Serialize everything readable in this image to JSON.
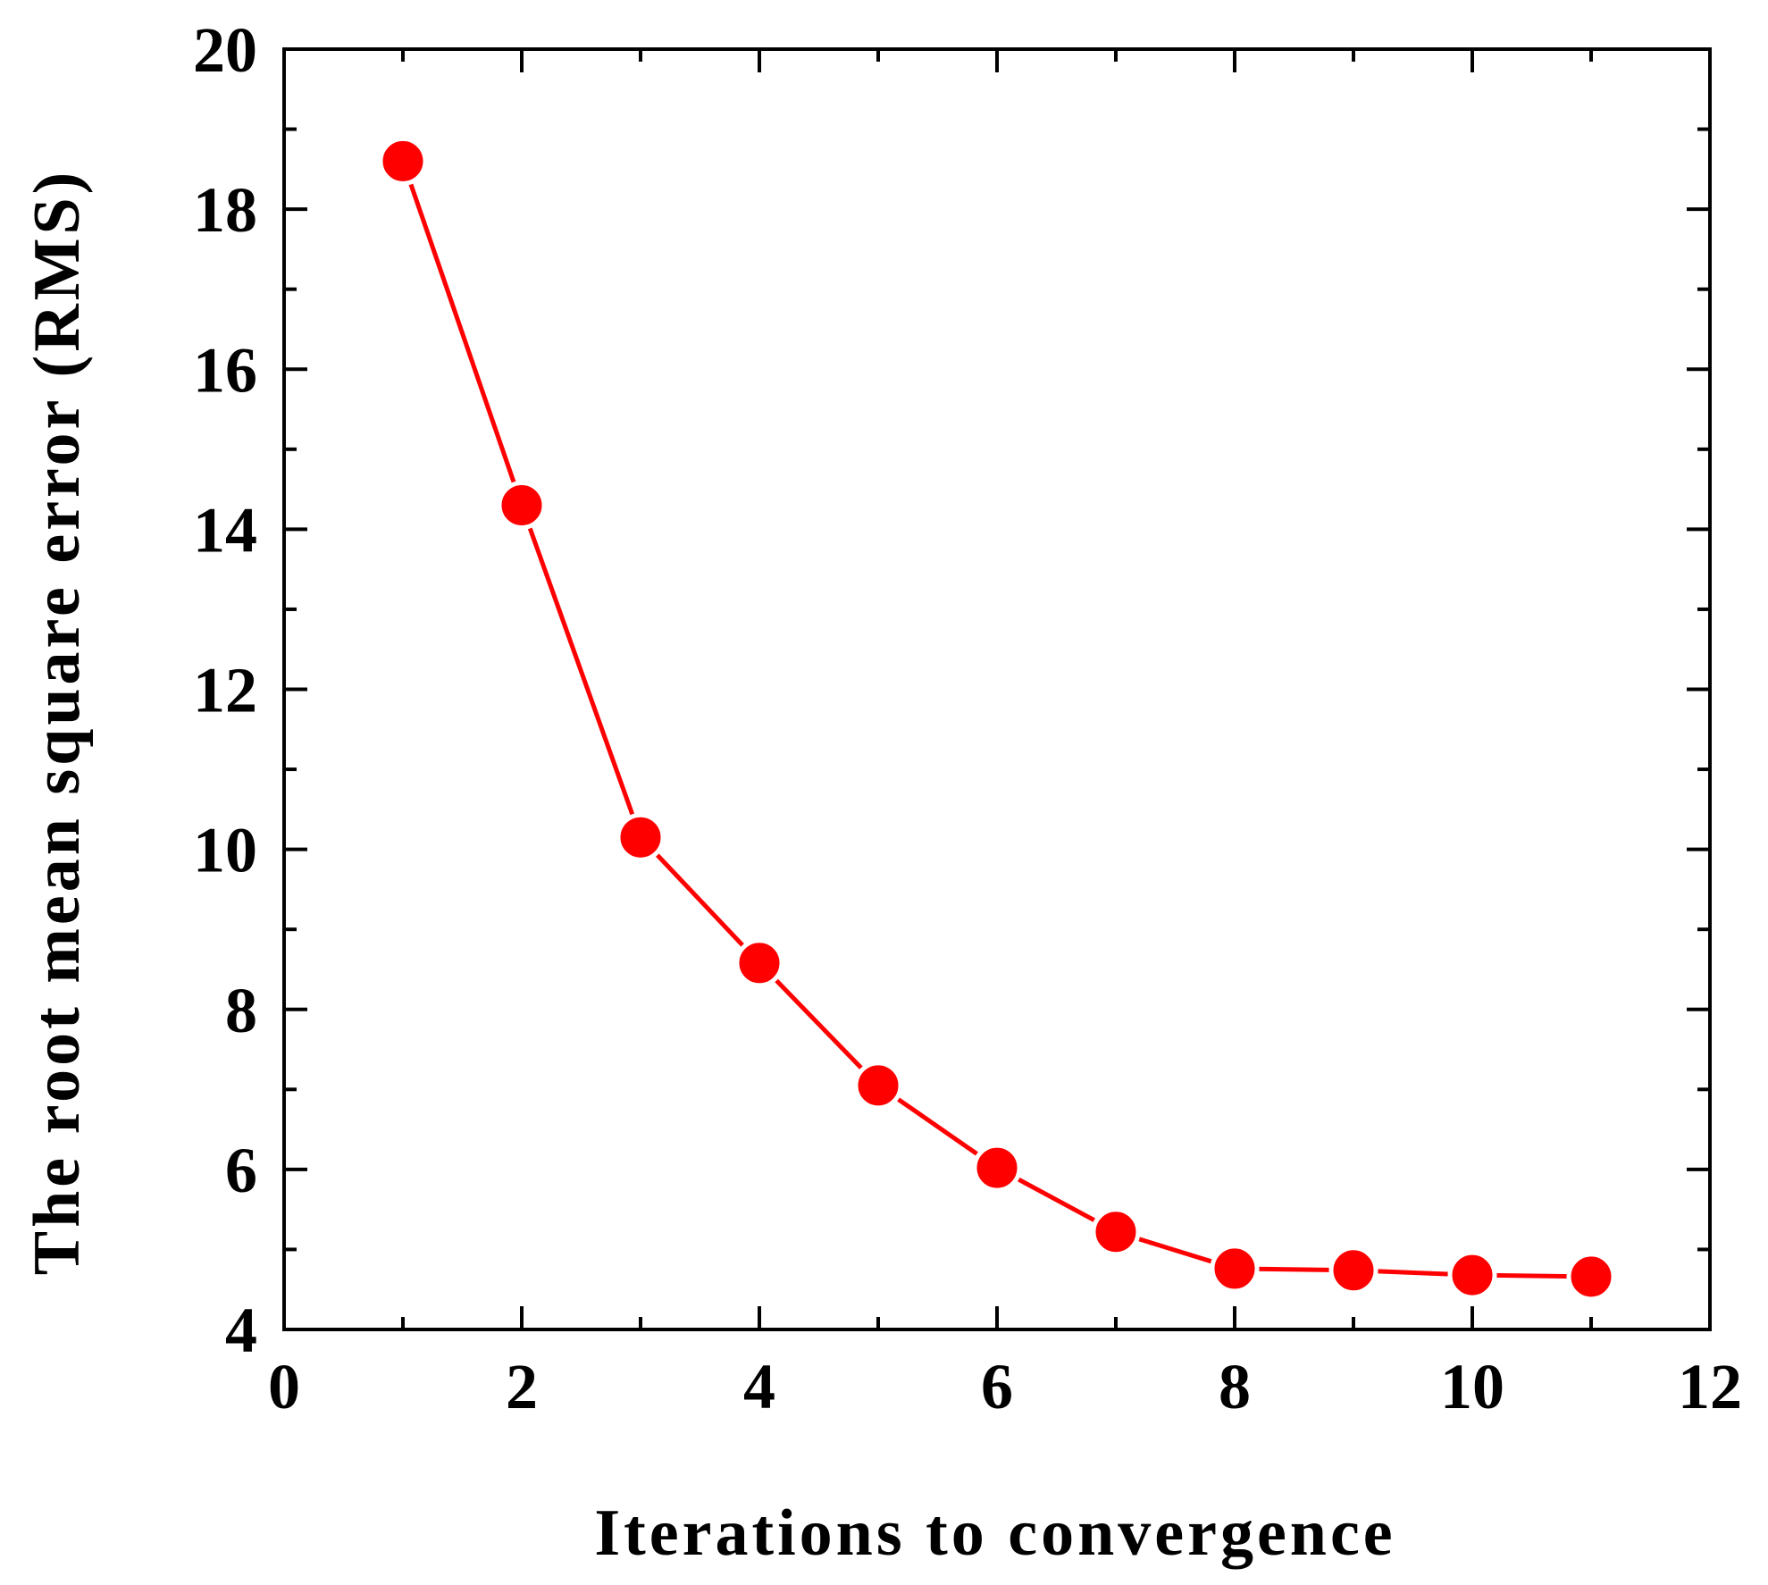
{
  "chart_data": {
    "type": "line",
    "title": "",
    "xlabel": "Iterations to convergence",
    "ylabel": "The root mean square error (RMS)",
    "xlim": [
      0,
      12
    ],
    "ylim": [
      4,
      20
    ],
    "x_ticks": [
      "0",
      "2",
      "4",
      "6",
      "8",
      "10",
      "12"
    ],
    "y_ticks": [
      "4",
      "6",
      "8",
      "10",
      "12",
      "14",
      "16",
      "18",
      "20"
    ],
    "grid": false,
    "legend": "none",
    "series": [
      {
        "color": "#ff0000",
        "x": [
          1,
          2,
          3,
          4,
          5,
          6,
          7,
          8,
          9,
          10,
          11
        ],
        "y": [
          18.6,
          14.3,
          10.15,
          8.58,
          7.05,
          6.02,
          5.22,
          4.76,
          4.74,
          4.68,
          4.66
        ]
      }
    ]
  }
}
